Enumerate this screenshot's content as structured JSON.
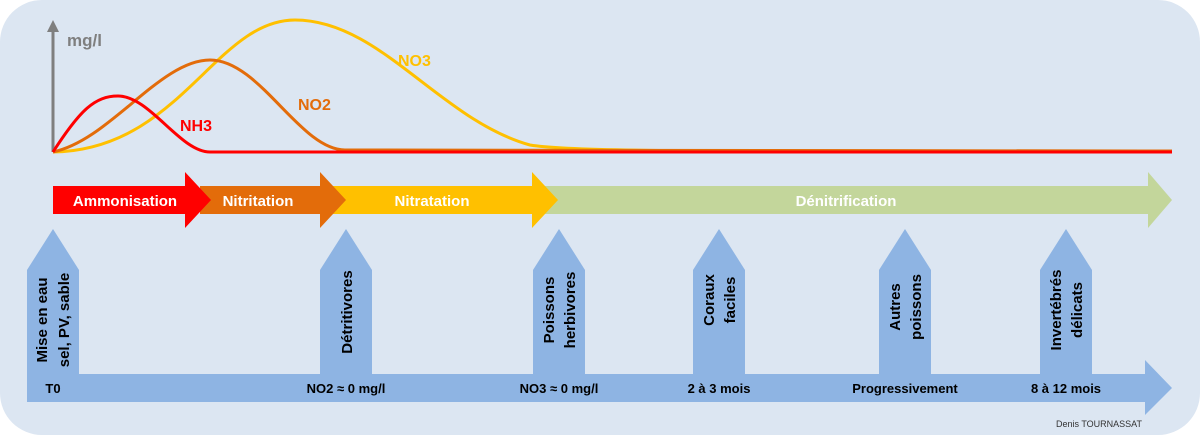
{
  "axis": {
    "unit": "mg/l"
  },
  "curves": [
    {
      "label": "NH3",
      "color": "#ff0000"
    },
    {
      "label": "NO2",
      "color": "#e36c0a"
    },
    {
      "label": "NO3",
      "color": "#ffc000"
    }
  ],
  "phases": [
    {
      "label": "Ammonisation",
      "color": "#ff0000"
    },
    {
      "label": "Nitritation",
      "color": "#e36c0a"
    },
    {
      "label": "Nitratation",
      "color": "#ffc000"
    },
    {
      "label": "Dénitrification",
      "color": "#c3d69b"
    }
  ],
  "milestones": [
    {
      "line1": "Mise en eau",
      "line2": "sel, PV, sable",
      "time": "T0"
    },
    {
      "line1": "Détritivores",
      "line2": "",
      "time": "NO2 ≈ 0 mg/l"
    },
    {
      "line1": "Poissons",
      "line2": "herbivores",
      "time": "NO3 ≈ 0 mg/l"
    },
    {
      "line1": "Coraux",
      "line2": "faciles",
      "time": "2 à 3 mois"
    },
    {
      "line1": "Autres",
      "line2": "poissons",
      "time": "Progressivement"
    },
    {
      "line1": "Invertébrés",
      "line2": "délicats",
      "time": "8 à 12 mois"
    }
  ],
  "credit": "Denis TOURNASSAT",
  "colors": {
    "background": "#dce6f2",
    "timeline": "#8eb4e3",
    "axis": "#7f7f7f"
  }
}
